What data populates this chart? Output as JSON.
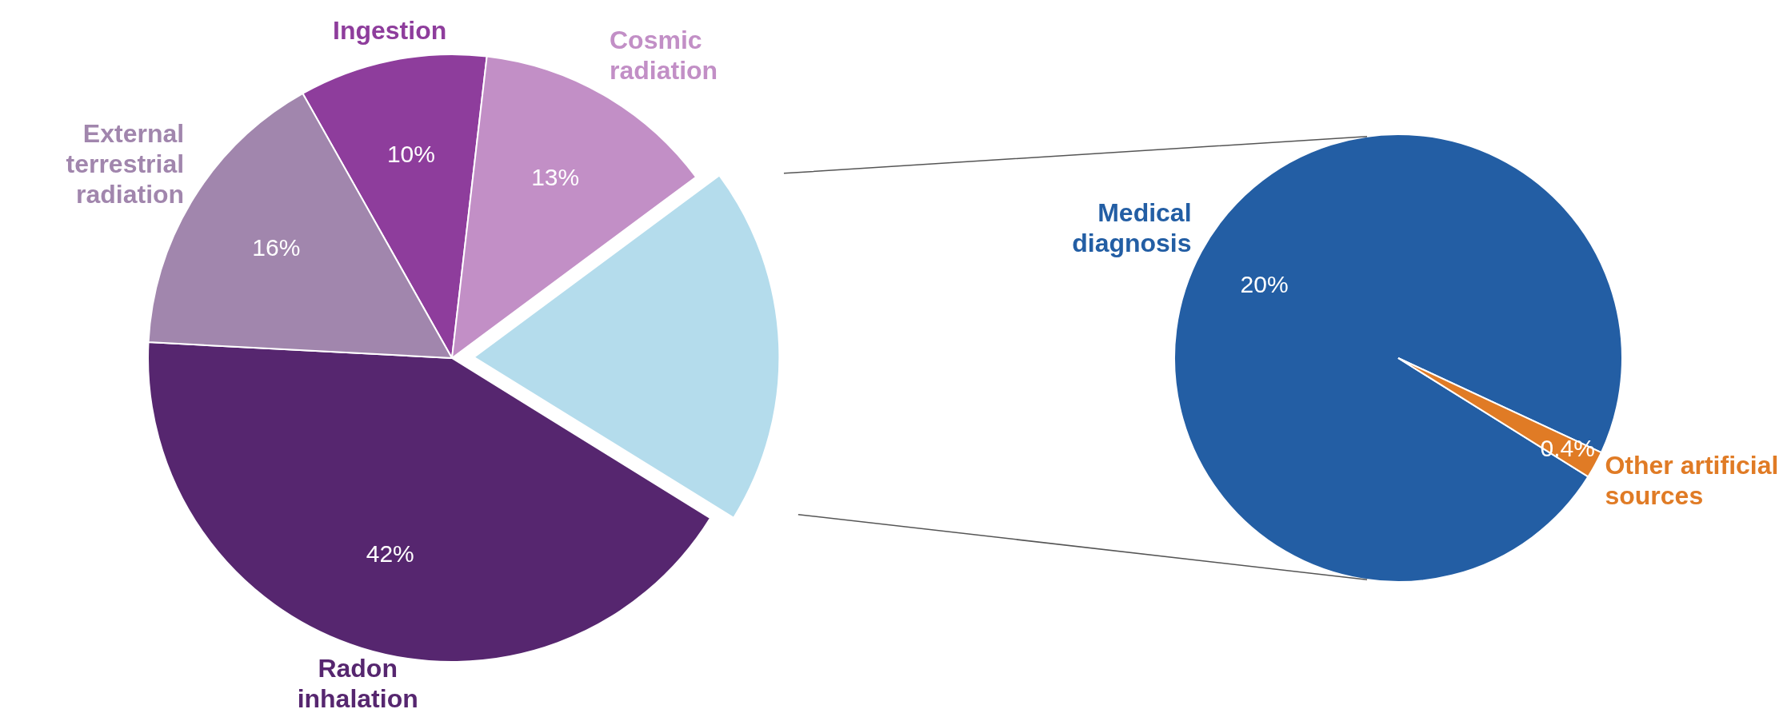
{
  "chart_data": [
    {
      "type": "pie",
      "categories": [
        "Ingestion",
        "Cosmic radiation",
        null,
        "Radon inhalation",
        "External terrestrial radiation"
      ],
      "values": [
        10,
        13,
        19,
        42,
        16
      ],
      "colors": [
        "#8e3d9c",
        "#c28fc6",
        "#b4dcec",
        "#56266f",
        "#a186ad"
      ],
      "value_labels": [
        "10%",
        "13%",
        null,
        "42%",
        "16%"
      ]
    },
    {
      "type": "pie",
      "categories": [
        "Medical diagnosis",
        "Other artificial sources"
      ],
      "values": [
        20,
        0.4
      ],
      "colors": [
        "#235ea4",
        "#e07b25"
      ],
      "value_labels": [
        "20%",
        "0.4%"
      ]
    }
  ]
}
